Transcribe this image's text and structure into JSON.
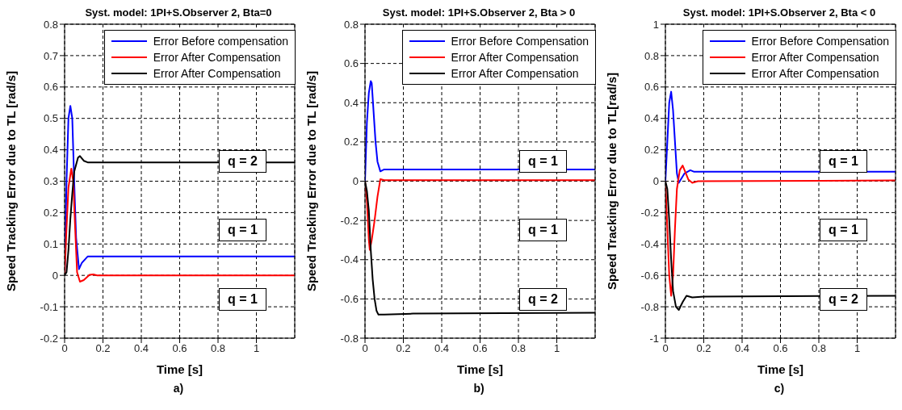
{
  "chart_data": [
    {
      "type": "line",
      "title": "Syst. model: 1PI+S.Observer 2, Bta=0",
      "xlabel": "Time [s]",
      "ylabel": "Speed Tracking Error due to TL [rad/s]",
      "xlim": [
        0,
        1.2
      ],
      "xticks": [
        0,
        0.2,
        0.4,
        0.6,
        0.8,
        1
      ],
      "ylim": [
        -0.2,
        0.8
      ],
      "yticks": [
        -0.2,
        -0.1,
        0,
        0.1,
        0.2,
        0.3,
        0.4,
        0.5,
        0.6,
        0.7,
        0.8
      ],
      "grid": true,
      "legend": "top right",
      "series": [
        {
          "name": "Error Before compensation",
          "color": "#0000ff",
          "x": [
            0,
            0.01,
            0.02,
            0.03,
            0.04,
            0.05,
            0.06,
            0.075,
            0.09,
            0.12,
            1.2
          ],
          "values": [
            0,
            0.3,
            0.5,
            0.54,
            0.5,
            0.3,
            0.12,
            0.02,
            0.04,
            0.06,
            0.06
          ]
        },
        {
          "name": "Error After Compensation",
          "color": "#ff0000",
          "x": [
            0,
            0.01,
            0.02,
            0.035,
            0.045,
            0.055,
            0.065,
            0.08,
            0.1,
            0.13,
            0.15,
            0.17,
            1.2
          ],
          "values": [
            0,
            0.15,
            0.28,
            0.34,
            0.3,
            0.15,
            0.01,
            -0.02,
            -0.015,
            0.002,
            0.003,
            0,
            0
          ]
        },
        {
          "name": "Error After Compensation",
          "color": "#000000",
          "x": [
            0,
            0.01,
            0.02,
            0.03,
            0.04,
            0.05,
            0.07,
            0.08,
            0.1,
            0.12,
            1.2
          ],
          "values": [
            0,
            0.01,
            0.08,
            0.18,
            0.26,
            0.33,
            0.375,
            0.38,
            0.365,
            0.36,
            0.36
          ]
        }
      ],
      "annotations": [
        "q = 2",
        "q = 1",
        "q = 1",
        "a)"
      ]
    },
    {
      "type": "line",
      "title": "Syst. model: 1PI+S.Observer 2, Bta > 0",
      "xlabel": "Time [s]",
      "ylabel": "Speed Tracking Error due to TL [rad/s]",
      "xlim": [
        0,
        1.2
      ],
      "xticks": [
        0,
        0.2,
        0.4,
        0.6,
        0.8,
        1
      ],
      "ylim": [
        -0.8,
        0.8
      ],
      "yticks": [
        -0.8,
        -0.6,
        -0.4,
        -0.2,
        0,
        0.2,
        0.4,
        0.6,
        0.8
      ],
      "grid": true,
      "legend": "top right",
      "series": [
        {
          "name": "Error Before Compensation",
          "color": "#0000ff",
          "x": [
            0,
            0.005,
            0.01,
            0.02,
            0.03,
            0.035,
            0.045,
            0.055,
            0.065,
            0.08,
            0.1,
            1.2
          ],
          "values": [
            0,
            0.15,
            0.3,
            0.45,
            0.51,
            0.5,
            0.35,
            0.2,
            0.1,
            0.05,
            0.06,
            0.06
          ]
        },
        {
          "name": "Error After Compensation",
          "color": "#ff0000",
          "x": [
            0,
            0.01,
            0.02,
            0.025,
            0.035,
            0.05,
            0.065,
            0.08,
            0.1,
            1.2
          ],
          "values": [
            0,
            -0.1,
            -0.3,
            -0.35,
            -0.3,
            -0.2,
            -0.08,
            0.01,
            0.005,
            0.005
          ]
        },
        {
          "name": "Error After Compensation",
          "color": "#000000",
          "x": [
            0,
            0.01,
            0.02,
            0.03,
            0.04,
            0.05,
            0.06,
            0.07,
            0.1,
            0.25,
            1.2
          ],
          "values": [
            0,
            -0.05,
            -0.15,
            -0.35,
            -0.5,
            -0.6,
            -0.66,
            -0.68,
            -0.68,
            -0.675,
            -0.67
          ]
        }
      ],
      "annotations": [
        "q = 1",
        "q = 1",
        "q = 2",
        "b)"
      ]
    },
    {
      "type": "line",
      "title": "Syst. model: 1PI+S.Observer 2, Bta < 0",
      "xlabel": "Time [s]",
      "ylabel": "Speed Tracking Error due to TL[rad/s]",
      "xlim": [
        0,
        1.2
      ],
      "xticks": [
        0,
        0.2,
        0.4,
        0.6,
        0.8,
        1
      ],
      "ylim": [
        -1,
        1
      ],
      "yticks": [
        -1,
        -0.8,
        -0.6,
        -0.4,
        -0.2,
        0,
        0.2,
        0.4,
        0.6,
        0.8,
        1
      ],
      "grid": true,
      "legend": "top right",
      "series": [
        {
          "name": "Error Before Compensation",
          "color": "#0000ff",
          "x": [
            0,
            0.01,
            0.02,
            0.03,
            0.04,
            0.05,
            0.06,
            0.07,
            0.08,
            0.1,
            0.13,
            0.15,
            1.2
          ],
          "values": [
            0,
            0.25,
            0.5,
            0.57,
            0.45,
            0.25,
            0.05,
            -0.01,
            0.01,
            0.05,
            0.07,
            0.06,
            0.06
          ]
        },
        {
          "name": "Error After Compensation",
          "color": "#ff0000",
          "x": [
            0,
            0.01,
            0.02,
            0.03,
            0.04,
            0.05,
            0.06,
            0.075,
            0.09,
            0.1,
            0.12,
            0.14,
            0.17,
            1.2
          ],
          "values": [
            0,
            -0.3,
            -0.6,
            -0.73,
            -0.6,
            -0.3,
            -0.05,
            0.07,
            0.1,
            0.07,
            0.01,
            -0.01,
            0,
            0.005
          ]
        },
        {
          "name": "Error After Compensation",
          "color": "#000000",
          "x": [
            0,
            0.01,
            0.02,
            0.03,
            0.04,
            0.055,
            0.07,
            0.09,
            0.11,
            0.14,
            0.2,
            1.2
          ],
          "values": [
            0,
            -0.05,
            -0.25,
            -0.5,
            -0.7,
            -0.8,
            -0.82,
            -0.77,
            -0.73,
            -0.74,
            -0.735,
            -0.73
          ]
        }
      ],
      "annotations": [
        "q = 1",
        "q = 1",
        "q = 2",
        "c)"
      ]
    }
  ]
}
